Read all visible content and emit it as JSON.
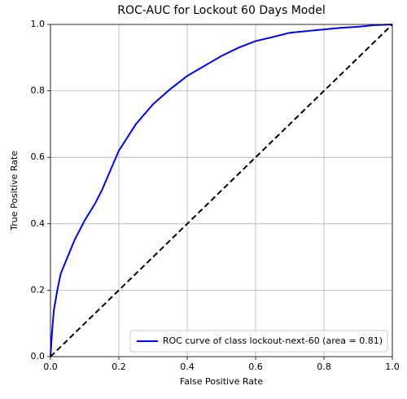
{
  "chart_data": {
    "type": "line",
    "title": "ROC-AUC for Lockout 60 Days Model",
    "xlabel": "False Positive Rate",
    "ylabel": "True Positive Rate",
    "xlim": [
      0,
      1
    ],
    "ylim": [
      0,
      1
    ],
    "xticks": [
      {
        "value": 0,
        "label": "0.0"
      },
      0.2,
      0.4,
      0.6,
      0.8,
      {
        "value": 1,
        "label": "1.0"
      }
    ],
    "yticks": [
      {
        "value": 0,
        "label": "0.0"
      },
      0.2,
      0.4,
      0.6,
      0.8,
      {
        "value": 1,
        "label": "1.0"
      }
    ],
    "grid": true,
    "legend": "lower right",
    "series": [
      {
        "name": "ROC curve of class lockout-next-60 (area = 0.81)",
        "color": "#0000ff",
        "linestyle": "solid",
        "x": [
          0,
          0.005,
          0.01,
          0.02,
          0.03,
          0.05,
          0.07,
          0.1,
          0.13,
          0.15,
          0.2,
          0.25,
          0.3,
          0.35,
          0.4,
          0.45,
          0.5,
          0.55,
          0.6,
          0.65,
          0.7,
          0.75,
          0.8,
          0.85,
          0.9,
          0.95,
          1
        ],
        "values": [
          0,
          0.08,
          0.14,
          0.2,
          0.25,
          0.3,
          0.35,
          0.41,
          0.46,
          0.5,
          0.62,
          0.7,
          0.76,
          0.805,
          0.845,
          0.875,
          0.905,
          0.93,
          0.95,
          0.962,
          0.975,
          0.98,
          0.985,
          0.99,
          0.993,
          0.998,
          1
        ]
      },
      {
        "color": "#000000",
        "linestyle": "dashed",
        "x": [
          0,
          1
        ],
        "values": [
          0,
          1
        ]
      }
    ]
  }
}
